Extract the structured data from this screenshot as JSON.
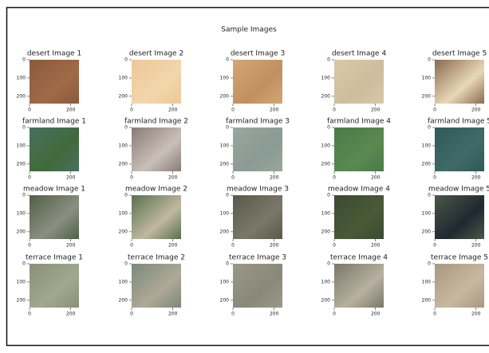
{
  "title": "Sample Images",
  "xticks": [
    0,
    200
  ],
  "yticks": [
    0,
    100,
    200
  ],
  "panels": [
    {
      "title": "desert Image 1"
    },
    {
      "title": "desert Image 2"
    },
    {
      "title": "desert Image 3"
    },
    {
      "title": "desert Image 4"
    },
    {
      "title": "desert Image 5"
    },
    {
      "title": "farmland Image 1"
    },
    {
      "title": "farmland Image 2"
    },
    {
      "title": "farmland Image 3"
    },
    {
      "title": "farmland Image 4"
    },
    {
      "title": "farmland Image 5"
    },
    {
      "title": "meadow Image 1"
    },
    {
      "title": "meadow Image 2"
    },
    {
      "title": "meadow Image 3"
    },
    {
      "title": "meadow Image 4"
    },
    {
      "title": "meadow Image 5"
    },
    {
      "title": "terrace Image 1"
    },
    {
      "title": "terrace Image 2"
    },
    {
      "title": "terrace Image 3"
    },
    {
      "title": "terrace Image 4"
    },
    {
      "title": "terrace Image 5"
    }
  ]
}
